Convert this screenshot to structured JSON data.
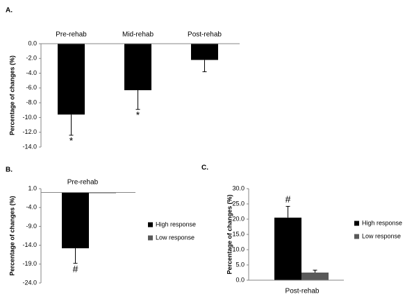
{
  "chart_data": [
    {
      "type": "bar",
      "panel_label": "A.",
      "y_label": "Percentage of changes (%)",
      "categories": [
        "Pre-rehab",
        "Mid-rehab",
        "Post-rehab"
      ],
      "series": [
        {
          "color": "#000000",
          "values": [
            -9.6,
            -6.3,
            -2.2
          ],
          "errors": [
            2.8,
            2.6,
            1.6
          ],
          "annotations": [
            "*",
            "*",
            null
          ]
        }
      ],
      "ylim": [
        -14,
        0
      ],
      "yticks": [
        {
          "value": -14,
          "label": "-14.0"
        },
        {
          "value": -12,
          "label": "-12.0"
        },
        {
          "value": -10,
          "label": "-10.0"
        },
        {
          "value": -8,
          "label": "-8.0"
        },
        {
          "value": -6,
          "label": "-6.0"
        },
        {
          "value": -4,
          "label": "-4.0"
        },
        {
          "value": -2,
          "label": "-2.0"
        },
        {
          "value": 0,
          "label": "0.0"
        }
      ]
    },
    {
      "type": "bar",
      "panel_label": "B.",
      "title": "Pre-rehab",
      "y_label": "Percentage of changes (%)",
      "series": [
        {
          "name": "High response",
          "color": "#000000",
          "values": [
            -14.8
          ],
          "errors": [
            4.0
          ],
          "annotations": [
            "#"
          ]
        },
        {
          "name": "Low response",
          "color": "#595959",
          "values": [
            -0.2
          ]
        }
      ],
      "ylim": [
        -24,
        1
      ],
      "yticks": [
        {
          "value": -24,
          "label": "-24.0"
        },
        {
          "value": -19,
          "label": "-19.0"
        },
        {
          "value": -14,
          "label": "-14.0"
        },
        {
          "value": -9,
          "label": "-9.0"
        },
        {
          "value": -4,
          "label": "-4.0"
        },
        {
          "value": 1,
          "label": "1.0"
        }
      ]
    },
    {
      "type": "bar",
      "panel_label": "C.",
      "x_label": "Post-rehab",
      "y_label": "Percentage of changes (%)",
      "series": [
        {
          "name": "High response",
          "color": "#000000",
          "values": [
            20.5
          ],
          "errors": [
            3.7
          ],
          "annotations": [
            "#"
          ]
        },
        {
          "name": "Low response",
          "color": "#595959",
          "values": [
            2.5
          ],
          "errors": [
            0.8
          ]
        }
      ],
      "ylim": [
        0,
        30
      ],
      "yticks": [
        {
          "value": 0,
          "label": "0.0"
        },
        {
          "value": 5,
          "label": "5.0"
        },
        {
          "value": 10,
          "label": "10.0"
        },
        {
          "value": 15,
          "label": "15.0"
        },
        {
          "value": 20,
          "label": "20.0"
        },
        {
          "value": 25,
          "label": "25.0"
        },
        {
          "value": 30,
          "label": "30.0"
        }
      ]
    }
  ]
}
